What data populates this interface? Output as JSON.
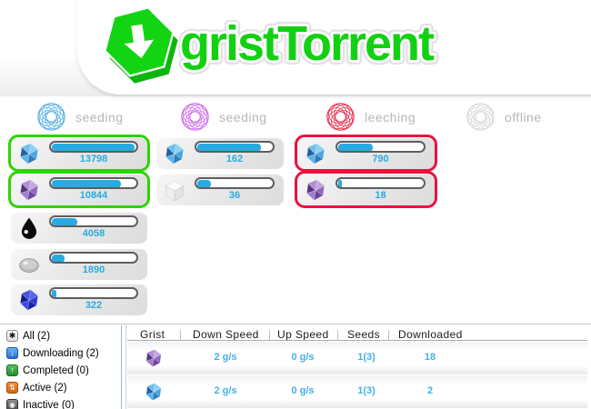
{
  "colors": {
    "brand_green": "#12d112",
    "card_highlight_green": "#2ed400",
    "card_highlight_red": "#ea1240",
    "progress_blue": "#29abe2",
    "table_value_blue": "#45b0e8",
    "label_gray": "#b6b6b6"
  },
  "logo": {
    "title": "gristTorrent",
    "icon": "hexagon-download-arrow"
  },
  "status_columns": [
    {
      "label": "seeding",
      "orb_color": "#5ab0e2"
    },
    {
      "label": "seeding",
      "orb_color": "#cf6ceb"
    },
    {
      "label": "leeching",
      "orb_color": "#e8314e"
    },
    {
      "label": "offline",
      "orb_color": "#d9d9d9"
    }
  ],
  "cards": [
    {
      "icon": "blue-gem",
      "value": "13798",
      "progress_percent": 97,
      "highlight": "green"
    },
    {
      "icon": "purple-gem",
      "value": "10844",
      "progress_percent": 81,
      "highlight": "green"
    },
    {
      "icon": "black-drop",
      "value": "4058",
      "progress_percent": 30,
      "highlight": "none"
    },
    {
      "icon": "gray-stone",
      "value": "1890",
      "progress_percent": 15,
      "highlight": "none"
    },
    {
      "icon": "navy-gem",
      "value": "322",
      "progress_percent": 5,
      "highlight": "none"
    },
    {
      "icon": "blue-gem",
      "value": "162",
      "progress_percent": 83,
      "highlight": "none"
    },
    {
      "icon": "white-cube",
      "value": "36",
      "progress_percent": 18,
      "highlight": "none"
    },
    {
      "icon": "blue-gem",
      "value": "790",
      "progress_percent": 40,
      "highlight": "red"
    },
    {
      "icon": "purple-gem",
      "value": "18",
      "progress_percent": 4,
      "highlight": "red"
    }
  ],
  "filters": [
    {
      "label": "All (2)",
      "icon": "asterisk"
    },
    {
      "label": "Downloading (2)",
      "icon": "down-arrow-blue"
    },
    {
      "label": "Completed (0)",
      "icon": "up-arrow-green"
    },
    {
      "label": "Active (2)",
      "icon": "up-down-orange"
    },
    {
      "label": "Inactive (0)",
      "icon": "record-gray"
    }
  ],
  "table": {
    "headers": [
      "Grist",
      "Down Speed",
      "Up Speed",
      "Seeds",
      "Downloaded"
    ],
    "rows": [
      {
        "gem": "purple-gem",
        "down_speed": "2 g/s",
        "up_speed": "0 g/s",
        "seeds": "1(3)",
        "downloaded": "18"
      },
      {
        "gem": "blue-gem",
        "down_speed": "2 g/s",
        "up_speed": "0 g/s",
        "seeds": "1(3)",
        "downloaded": "2"
      }
    ]
  }
}
